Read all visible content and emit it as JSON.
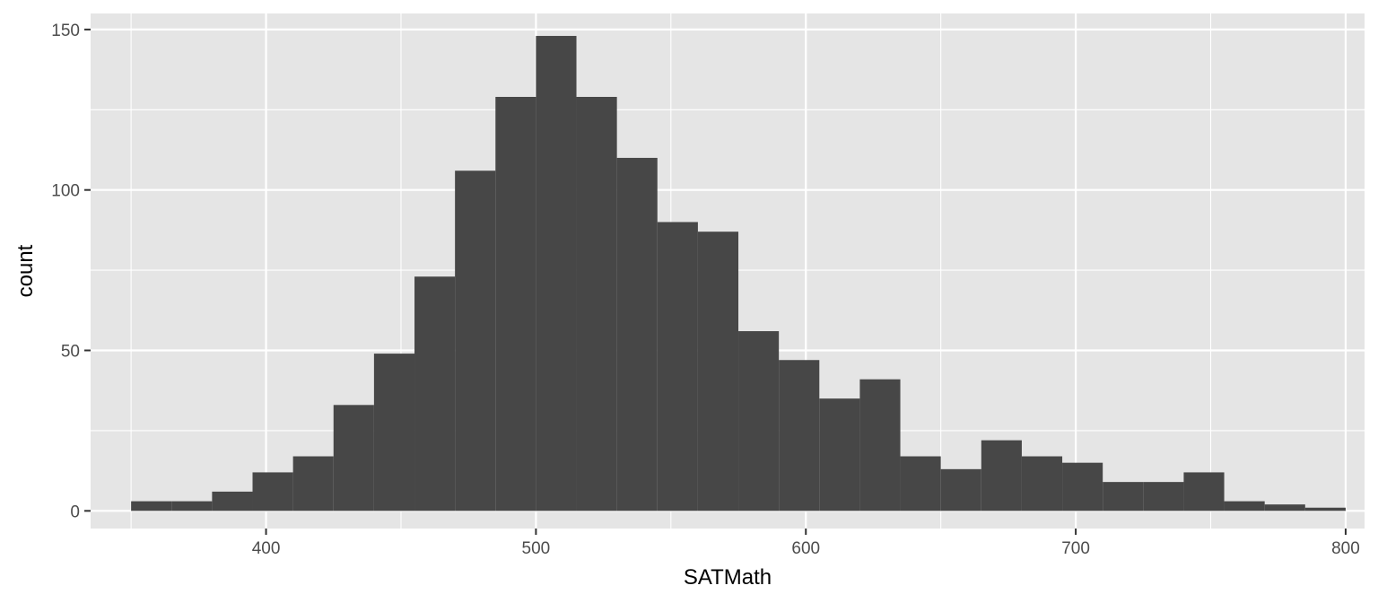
{
  "chart_data": {
    "type": "bar",
    "title": "",
    "xlabel": "SATMath",
    "ylabel": "count",
    "xlim": [
      335,
      807
    ],
    "ylim": [
      -5.5,
      155
    ],
    "xticks": [
      400,
      500,
      600,
      700,
      800
    ],
    "yticks": [
      0,
      50,
      100,
      150
    ],
    "grid": true,
    "legend": "none",
    "bins": [
      {
        "x0": 350,
        "x1": 365,
        "count": 3
      },
      {
        "x0": 365,
        "x1": 380,
        "count": 3
      },
      {
        "x0": 380,
        "x1": 395,
        "count": 6
      },
      {
        "x0": 395,
        "x1": 410,
        "count": 12
      },
      {
        "x0": 410,
        "x1": 425,
        "count": 17
      },
      {
        "x0": 425,
        "x1": 440,
        "count": 33
      },
      {
        "x0": 440,
        "x1": 455,
        "count": 49
      },
      {
        "x0": 455,
        "x1": 470,
        "count": 73
      },
      {
        "x0": 470,
        "x1": 485,
        "count": 106
      },
      {
        "x0": 485,
        "x1": 500,
        "count": 129
      },
      {
        "x0": 500,
        "x1": 515,
        "count": 148
      },
      {
        "x0": 515,
        "x1": 530,
        "count": 129
      },
      {
        "x0": 530,
        "x1": 545,
        "count": 110
      },
      {
        "x0": 545,
        "x1": 560,
        "count": 90
      },
      {
        "x0": 560,
        "x1": 575,
        "count": 87
      },
      {
        "x0": 575,
        "x1": 590,
        "count": 56
      },
      {
        "x0": 590,
        "x1": 605,
        "count": 47
      },
      {
        "x0": 605,
        "x1": 620,
        "count": 35
      },
      {
        "x0": 620,
        "x1": 635,
        "count": 41
      },
      {
        "x0": 635,
        "x1": 650,
        "count": 17
      },
      {
        "x0": 650,
        "x1": 665,
        "count": 13
      },
      {
        "x0": 665,
        "x1": 680,
        "count": 22
      },
      {
        "x0": 680,
        "x1": 695,
        "count": 17
      },
      {
        "x0": 695,
        "x1": 710,
        "count": 15
      },
      {
        "x0": 710,
        "x1": 725,
        "count": 9
      },
      {
        "x0": 725,
        "x1": 740,
        "count": 9
      },
      {
        "x0": 740,
        "x1": 755,
        "count": 12
      },
      {
        "x0": 755,
        "x1": 770,
        "count": 3
      },
      {
        "x0": 770,
        "x1": 785,
        "count": 2
      },
      {
        "x0": 785,
        "x1": 800,
        "count": 1
      }
    ],
    "colors": {
      "panel_background": "#e5e5e5",
      "grid": "#ffffff",
      "bar_fill": "#474747",
      "tick": "#333333"
    }
  }
}
